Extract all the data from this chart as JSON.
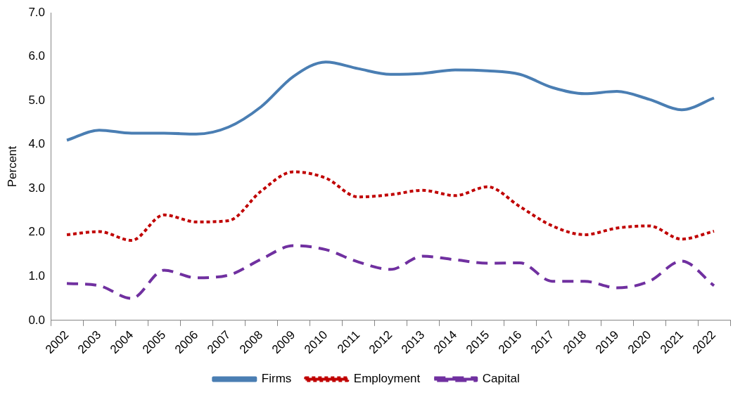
{
  "chart_data": {
    "type": "line",
    "ylabel": "Percent",
    "categories": [
      "2002",
      "2003",
      "2004",
      "2005",
      "2006",
      "2007",
      "2008",
      "2009",
      "2010",
      "2011",
      "2012",
      "2013",
      "2014",
      "2015",
      "2016",
      "2017",
      "2018",
      "2019",
      "2020",
      "2021",
      "2022"
    ],
    "series": [
      {
        "name": "Firms",
        "color": "#4a7eb3",
        "line_style": "solid",
        "values": [
          4.1,
          4.33,
          4.26,
          4.26,
          4.24,
          4.4,
          4.86,
          5.55,
          5.88,
          5.73,
          5.6,
          5.62,
          5.7,
          5.68,
          5.6,
          5.3,
          5.16,
          5.21,
          5.03,
          4.79,
          5.06
        ]
      },
      {
        "name": "Employment",
        "color": "#c00000",
        "line_style": "dotted",
        "values": [
          1.95,
          2.02,
          1.82,
          2.4,
          2.24,
          2.27,
          2.94,
          3.38,
          3.24,
          2.81,
          2.86,
          2.96,
          2.84,
          3.04,
          2.59,
          2.15,
          1.95,
          2.1,
          2.15,
          1.85,
          2.03
        ]
      },
      {
        "name": "Capital",
        "color": "#7030a0",
        "line_style": "dashed",
        "values": [
          0.84,
          0.79,
          0.5,
          1.14,
          0.97,
          1.03,
          1.39,
          1.7,
          1.61,
          1.33,
          1.16,
          1.46,
          1.38,
          1.3,
          1.31,
          0.89,
          0.89,
          0.74,
          0.89,
          1.35,
          0.79
        ]
      }
    ],
    "ylim": [
      0,
      7
    ],
    "yticks": [
      {
        "value": 0,
        "label": "0.0"
      },
      {
        "value": 1,
        "label": "1.0"
      },
      {
        "value": 2,
        "label": "2.0"
      },
      {
        "value": 3,
        "label": "3.0"
      },
      {
        "value": 4,
        "label": "4.0"
      },
      {
        "value": 5,
        "label": "5.0"
      },
      {
        "value": 6,
        "label": "6.0"
      },
      {
        "value": 7,
        "label": "7.0"
      }
    ],
    "grid": false,
    "legend": "bottom",
    "marker": "none"
  }
}
